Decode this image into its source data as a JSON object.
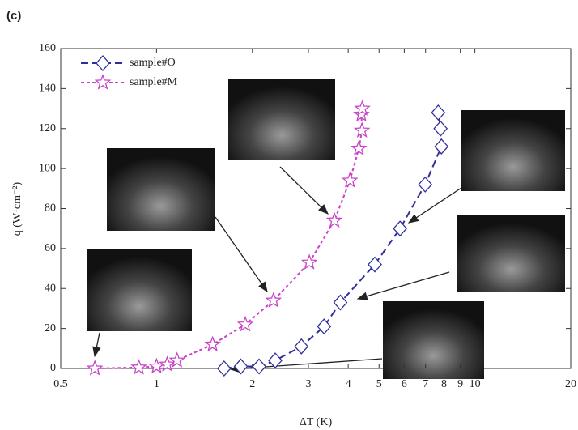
{
  "chart_data": {
    "type": "line",
    "panel_label": "(c)",
    "xlabel": "ΔT (K)",
    "ylabel": "q (W·cm⁻²)",
    "xscale": "log",
    "xlim": [
      0.5,
      20
    ],
    "xticks": [
      0.5,
      1,
      2,
      3,
      4,
      5,
      6,
      7,
      8,
      9,
      10,
      20
    ],
    "ylim": [
      0,
      160
    ],
    "yticks": [
      0,
      20,
      40,
      60,
      80,
      100,
      120,
      140,
      160
    ],
    "legend": "upper left",
    "series": [
      {
        "name": "sample#O",
        "color": "#2e2e9c",
        "marker": "diamond",
        "x": [
          1.63,
          1.84,
          2.1,
          2.36,
          2.85,
          3.36,
          3.78,
          4.85,
          5.82,
          6.98,
          7.85,
          7.8,
          7.67
        ],
        "values": [
          0,
          1,
          1,
          4,
          11,
          21,
          33,
          52,
          70,
          92,
          111,
          120,
          128
        ]
      },
      {
        "name": "sample#M",
        "color": "#c843c8",
        "marker": "star",
        "x": [
          0.64,
          0.88,
          1.0,
          1.08,
          1.16,
          1.5,
          1.9,
          2.33,
          3.02,
          3.62,
          4.05,
          4.32,
          4.42,
          4.4,
          4.43
        ],
        "values": [
          0,
          0.5,
          1,
          2,
          4,
          12,
          22,
          34,
          53,
          74,
          94,
          110,
          119,
          127,
          130
        ]
      }
    ]
  }
}
